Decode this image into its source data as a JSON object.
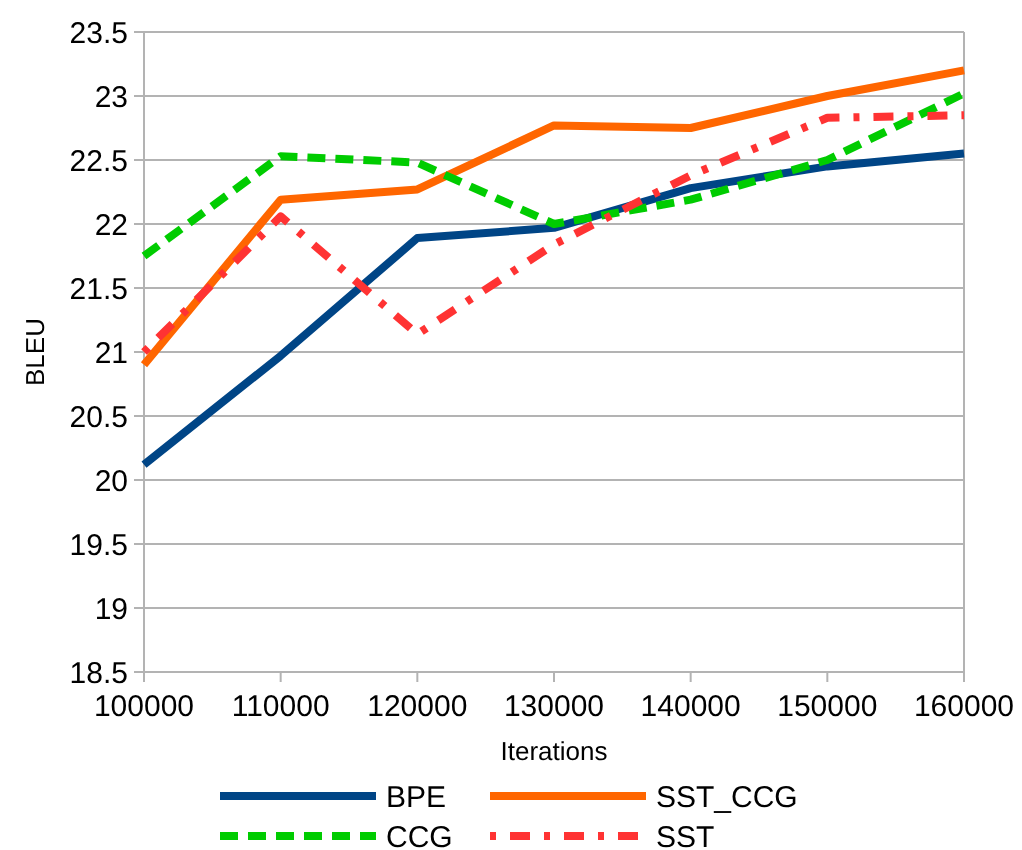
{
  "chart_data": {
    "type": "line",
    "xlabel": "Iterations",
    "ylabel": "BLEU",
    "x": [
      100000,
      110000,
      120000,
      130000,
      140000,
      150000,
      160000
    ],
    "xlim": [
      100000,
      160000
    ],
    "xticks": [
      100000,
      110000,
      120000,
      130000,
      140000,
      150000,
      160000
    ],
    "ylim": [
      18.5,
      23.5
    ],
    "yticks": [
      18.5,
      19,
      19.5,
      20,
      20.5,
      21,
      21.5,
      22,
      22.5,
      23,
      23.5
    ],
    "grid": "y",
    "legend": "bottom",
    "series": [
      {
        "name": "BPE",
        "color": "#004586",
        "line_style": "solid",
        "values": [
          20.12,
          20.97,
          21.89,
          21.97,
          22.28,
          22.45,
          22.55
        ]
      },
      {
        "name": "SST_CCG",
        "color": "#ff6600",
        "line_style": "solid",
        "values": [
          20.9,
          22.19,
          22.27,
          22.77,
          22.75,
          23.0,
          23.2
        ]
      },
      {
        "name": "CCG",
        "color": "#00cc00",
        "line_style": "dashed",
        "values": [
          21.75,
          22.53,
          22.48,
          22.0,
          22.19,
          22.5,
          23.02
        ]
      },
      {
        "name": "SST",
        "color": "#ff3333",
        "line_style": "dotted",
        "values": [
          21.0,
          22.06,
          21.14,
          21.84,
          22.38,
          22.83,
          22.85
        ]
      }
    ]
  }
}
